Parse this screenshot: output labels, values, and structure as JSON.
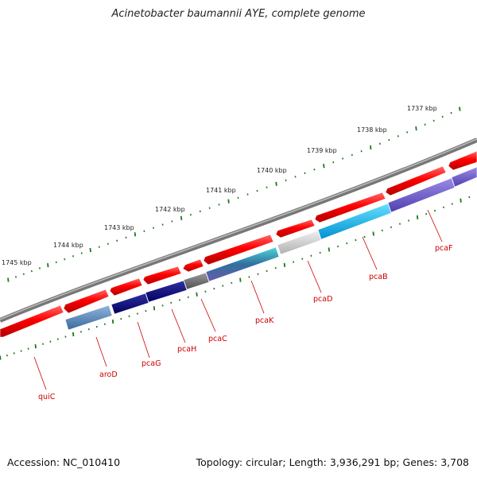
{
  "title": "Acinetobacter baumannii AYE, complete genome",
  "footer": {
    "accession": "Accession: NC_010410",
    "info": "Topology: circular; Length: 3,936,291 bp; Genes: 3,708"
  },
  "scale_labels": [
    "1737 kbp",
    "1738 kbp",
    "1739 kbp",
    "1740 kbp",
    "1741 kbp",
    "1742 kbp",
    "1743 kbp",
    "1744 kbp",
    "1745 kbp"
  ],
  "gene_labels": [
    "quiC",
    "aroD",
    "pcaG",
    "pcaH",
    "pcaC",
    "pcaK",
    "pcaD",
    "pcaB",
    "pcaF"
  ],
  "colors": {
    "backbone": "#808080",
    "cds": "#ff0000",
    "scale": "#1a7a1a",
    "label": "#cc0000"
  }
}
